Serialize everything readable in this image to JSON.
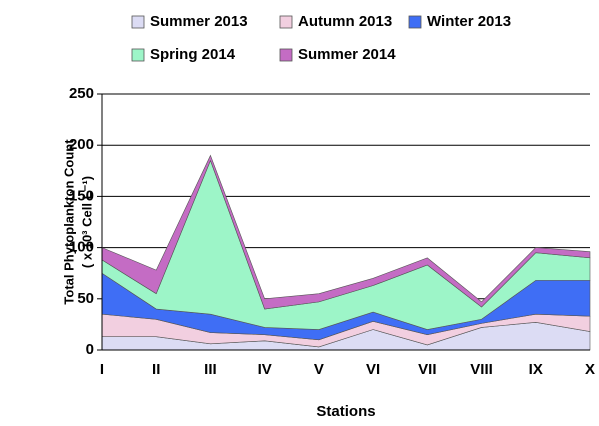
{
  "chart_data": {
    "type": "stacked_area",
    "categories": [
      "I",
      "II",
      "III",
      "IV",
      "V",
      "VI",
      "VII",
      "VIII",
      "IX",
      "X"
    ],
    "series": [
      {
        "name": "Summer 2013",
        "color": "#dcdcf4",
        "values": [
          13,
          13,
          6,
          9,
          3,
          20,
          5,
          22,
          27,
          18
        ]
      },
      {
        "name": "Autumn 2013",
        "color": "#f2cfe0",
        "values": [
          22,
          17,
          11,
          6,
          7,
          8,
          10,
          4,
          8,
          15
        ]
      },
      {
        "name": "Winter 2013",
        "color": "#3f6ef5",
        "values": [
          40,
          10,
          18,
          7,
          10,
          9,
          5,
          4,
          33,
          35
        ]
      },
      {
        "name": "Spring 2014",
        "color": "#9df5c8",
        "values": [
          13,
          15,
          150,
          18,
          27,
          26,
          63,
          12,
          27,
          22
        ]
      },
      {
        "name": "Summer 2014",
        "color": "#c46cc4",
        "values": [
          12,
          23,
          5,
          10,
          8,
          7,
          7,
          5,
          5,
          6
        ]
      }
    ],
    "ylim": [
      0,
      250
    ],
    "yticks": [
      0,
      50,
      100,
      150,
      200,
      250
    ],
    "grid": true,
    "ylabel": [
      "Total Phytoplankton Count",
      "( x 10³ Cell L⁻¹)"
    ],
    "xlabel": "Stations"
  }
}
